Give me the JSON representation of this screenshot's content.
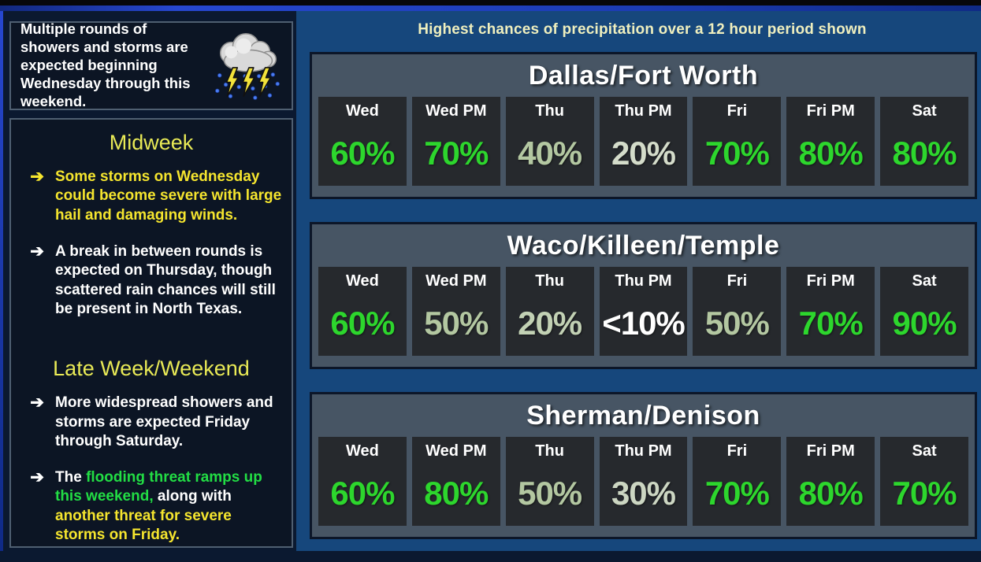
{
  "header": {
    "note": "Highest chances of precipitation over a 12 hour period shown"
  },
  "sidebar": {
    "intro": "Multiple rounds of showers and storms are expected beginning Wednesday through this weekend.",
    "icon": "storm-cloud-lightning-icon",
    "arrow_glyph": "➔",
    "sections": [
      {
        "heading": "Midweek",
        "bullets": [
          {
            "arrow_color": "#f5e52e",
            "segments": [
              {
                "text": "Some storms on Wednesday could become severe with large hail and damaging winds.",
                "color": "#f5e52e"
              }
            ]
          },
          {
            "arrow_color": "#ffffff",
            "segments": [
              {
                "text": "A break in between rounds is expected on Thursday, though scattered rain chances will still be present in North Texas.",
                "color": "#ffffff"
              }
            ]
          }
        ]
      },
      {
        "heading": "Late Week/Weekend",
        "bullets": [
          {
            "arrow_color": "#ffffff",
            "segments": [
              {
                "text": "More widespread showers and storms are expected Friday through Saturday.",
                "color": "#ffffff"
              }
            ]
          },
          {
            "arrow_color": "#ffffff",
            "segments": [
              {
                "text": "The ",
                "color": "#ffffff"
              },
              {
                "text": "flooding threat ramps up this weekend,",
                "color": "#22dd44"
              },
              {
                "text": " along with ",
                "color": "#ffffff"
              },
              {
                "text": "another threat for severe storms on Friday.",
                "color": "#f5e52e"
              }
            ]
          }
        ]
      }
    ]
  },
  "tables": [
    {
      "title": "Dallas/Fort Worth",
      "columns": [
        "Wed",
        "Wed PM",
        "Thu",
        "Thu PM",
        "Fri",
        "Fri PM",
        "Sat"
      ],
      "values": [
        {
          "text": "60%",
          "color": "#2dd62d"
        },
        {
          "text": "70%",
          "color": "#2dd62d"
        },
        {
          "text": "40%",
          "color": "#b3c7a1"
        },
        {
          "text": "20%",
          "color": "#d4dcca"
        },
        {
          "text": "70%",
          "color": "#2dd62d"
        },
        {
          "text": "80%",
          "color": "#2dd62d"
        },
        {
          "text": "80%",
          "color": "#2dd62d"
        }
      ]
    },
    {
      "title": "Waco/Killeen/Temple",
      "columns": [
        "Wed",
        "Wed PM",
        "Thu",
        "Thu PM",
        "Fri",
        "Fri PM",
        "Sat"
      ],
      "values": [
        {
          "text": "60%",
          "color": "#2dd62d"
        },
        {
          "text": "50%",
          "color": "#b3c7a1"
        },
        {
          "text": "20%",
          "color": "#c2d1b4"
        },
        {
          "text": "<10%",
          "color": "#ffffff"
        },
        {
          "text": "50%",
          "color": "#b3c7a1"
        },
        {
          "text": "70%",
          "color": "#2dd62d"
        },
        {
          "text": "90%",
          "color": "#2dd62d"
        }
      ]
    },
    {
      "title": "Sherman/Denison",
      "columns": [
        "Wed",
        "Wed PM",
        "Thu",
        "Thu PM",
        "Fri",
        "Fri PM",
        "Sat"
      ],
      "values": [
        {
          "text": "60%",
          "color": "#2dd62d"
        },
        {
          "text": "80%",
          "color": "#2dd62d"
        },
        {
          "text": "50%",
          "color": "#b3c7a1"
        },
        {
          "text": "30%",
          "color": "#ccd6c2"
        },
        {
          "text": "70%",
          "color": "#2dd62d"
        },
        {
          "text": "80%",
          "color": "#2dd62d"
        },
        {
          "text": "70%",
          "color": "#2dd62d"
        }
      ]
    }
  ],
  "chart_data": [
    {
      "type": "table",
      "title": "Dallas/Fort Worth",
      "categories": [
        "Wed",
        "Wed PM",
        "Thu",
        "Thu PM",
        "Fri",
        "Fri PM",
        "Sat"
      ],
      "values": [
        "60%",
        "70%",
        "40%",
        "20%",
        "70%",
        "80%",
        "80%"
      ],
      "values_numeric_pct": [
        60,
        70,
        40,
        20,
        70,
        80,
        80
      ],
      "ylabel": "Highest chance of precipitation per 12 hour period"
    },
    {
      "type": "table",
      "title": "Waco/Killeen/Temple",
      "categories": [
        "Wed",
        "Wed PM",
        "Thu",
        "Thu PM",
        "Fri",
        "Fri PM",
        "Sat"
      ],
      "values": [
        "60%",
        "50%",
        "20%",
        "<10%",
        "50%",
        "70%",
        "90%"
      ],
      "values_numeric_pct": [
        60,
        50,
        20,
        10,
        50,
        70,
        90
      ],
      "ylabel": "Highest chance of precipitation per 12 hour period"
    },
    {
      "type": "table",
      "title": "Sherman/Denison",
      "categories": [
        "Wed",
        "Wed PM",
        "Thu",
        "Thu PM",
        "Fri",
        "Fri PM",
        "Sat"
      ],
      "values": [
        "60%",
        "80%",
        "50%",
        "30%",
        "70%",
        "80%",
        "70%"
      ],
      "values_numeric_pct": [
        60,
        80,
        50,
        30,
        70,
        80,
        70
      ],
      "ylabel": "Highest chance of precipitation per 12 hour period"
    }
  ],
  "colors": {
    "high_chance_green": "#2dd62d",
    "medium_chance_sage": "#b3c7a1",
    "low_chance_pale": "#ccd6c2",
    "minimal_chance_white": "#ffffff",
    "heading_yellow": "#e9ea56",
    "note_pale_yellow": "#efefbe",
    "severe_yellow": "#f5e52e",
    "flood_green": "#22dd44",
    "panel_blue": "#16477c",
    "box_navy": "#0c1524",
    "table_slate": "#475564",
    "cell_charcoal": "#26292d"
  }
}
